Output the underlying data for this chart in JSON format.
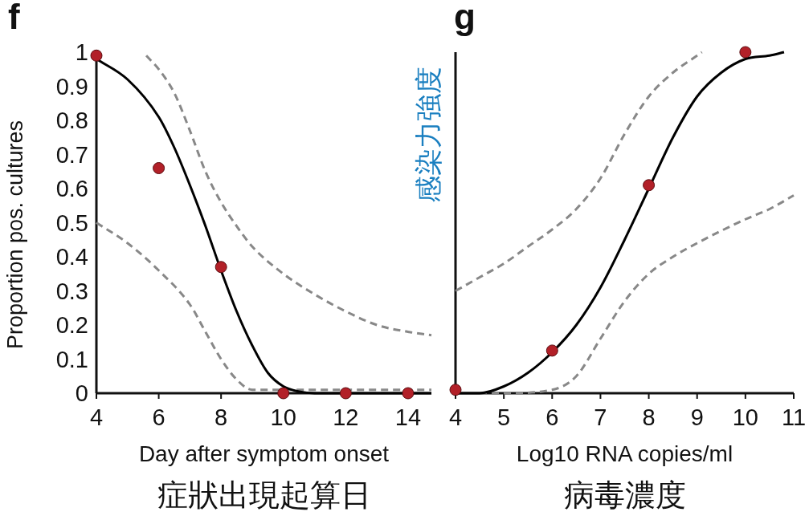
{
  "chart_data": [
    {
      "type": "line",
      "title": "f",
      "xlabel": "Day after symptom onset",
      "ylabel": "Proportion pos. cultures",
      "annotations": [
        "症狀出現起算日"
      ],
      "xlim": [
        4,
        14.75
      ],
      "ylim": [
        0,
        1
      ],
      "xticks": [
        4,
        6,
        8,
        10,
        12,
        14
      ],
      "yticks": [
        0,
        0.1,
        0.2,
        0.3,
        0.4,
        0.5,
        0.6,
        0.7,
        0.8,
        0.9,
        1
      ],
      "series": [
        {
          "type": "line",
          "color": "#888888",
          "line_style": "dashed",
          "x": [
            5.6,
            6,
            6.5,
            7,
            7.5,
            8,
            8.5,
            9,
            10,
            11,
            12,
            13,
            14,
            14.75
          ],
          "values": [
            0.99,
            0.95,
            0.88,
            0.77,
            0.65,
            0.56,
            0.49,
            0.43,
            0.35,
            0.29,
            0.24,
            0.2,
            0.18,
            0.17
          ]
        },
        {
          "type": "line",
          "color": "#888888",
          "line_style": "dashed",
          "x": [
            4,
            5,
            6,
            7,
            7.5,
            8,
            8.5,
            9,
            9.5,
            14.75
          ],
          "values": [
            0.5,
            0.44,
            0.36,
            0.26,
            0.18,
            0.1,
            0.04,
            0.01,
            0.01,
            0.01
          ]
        },
        {
          "type": "line",
          "color": "#000000",
          "line_style": "solid",
          "x": [
            4,
            5,
            6,
            6.5,
            7,
            7.5,
            8,
            8.5,
            9,
            9.5,
            10,
            10.5,
            11,
            14.75
          ],
          "values": [
            0.98,
            0.92,
            0.81,
            0.72,
            0.61,
            0.49,
            0.36,
            0.24,
            0.14,
            0.06,
            0.02,
            0.005,
            0,
            0
          ]
        },
        {
          "type": "scatter",
          "color": "#b22028",
          "marker": "circle",
          "x": [
            4,
            6,
            8,
            10,
            12,
            14
          ],
          "values": [
            0.99,
            0.66,
            0.37,
            0,
            0,
            0
          ]
        }
      ]
    },
    {
      "type": "line",
      "title": "g",
      "xlabel": "Log10 RNA copies/ml",
      "ylabel": "感染力強度",
      "annotations": [
        "病毒濃度"
      ],
      "xlim": [
        4,
        11
      ],
      "ylim": [
        0,
        1
      ],
      "xticks": [
        4,
        5,
        6,
        7,
        8,
        9,
        10,
        11
      ],
      "tick_labels": "x",
      "series": [
        {
          "type": "line",
          "color": "#888888",
          "line_style": "dashed",
          "x": [
            4,
            4.5,
            5,
            5.5,
            6,
            6.5,
            7,
            7.5,
            8,
            8.5,
            9,
            9.1
          ],
          "values": [
            0.3,
            0.34,
            0.38,
            0.43,
            0.48,
            0.54,
            0.63,
            0.76,
            0.87,
            0.94,
            0.99,
            1
          ]
        },
        {
          "type": "line",
          "color": "#888888",
          "line_style": "dashed",
          "x": [
            4,
            5,
            6,
            6.5,
            7,
            7.5,
            8,
            8.5,
            9,
            10,
            10.5,
            11
          ],
          "values": [
            0,
            0,
            0.01,
            0.05,
            0.16,
            0.27,
            0.35,
            0.4,
            0.44,
            0.51,
            0.54,
            0.58
          ]
        },
        {
          "type": "line",
          "color": "#000000",
          "line_style": "solid",
          "x": [
            4,
            4.5,
            5,
            5.5,
            6,
            6.5,
            7,
            7.5,
            8,
            8.5,
            9,
            9.5,
            10,
            10.5,
            10.8
          ],
          "values": [
            0,
            0,
            0.02,
            0.06,
            0.12,
            0.2,
            0.31,
            0.45,
            0.6,
            0.75,
            0.87,
            0.94,
            0.98,
            0.99,
            1
          ]
        },
        {
          "type": "scatter",
          "color": "#b22028",
          "marker": "circle",
          "x": [
            4,
            6,
            8,
            10
          ],
          "values": [
            0.01,
            0.125,
            0.61,
            1
          ]
        }
      ]
    }
  ]
}
